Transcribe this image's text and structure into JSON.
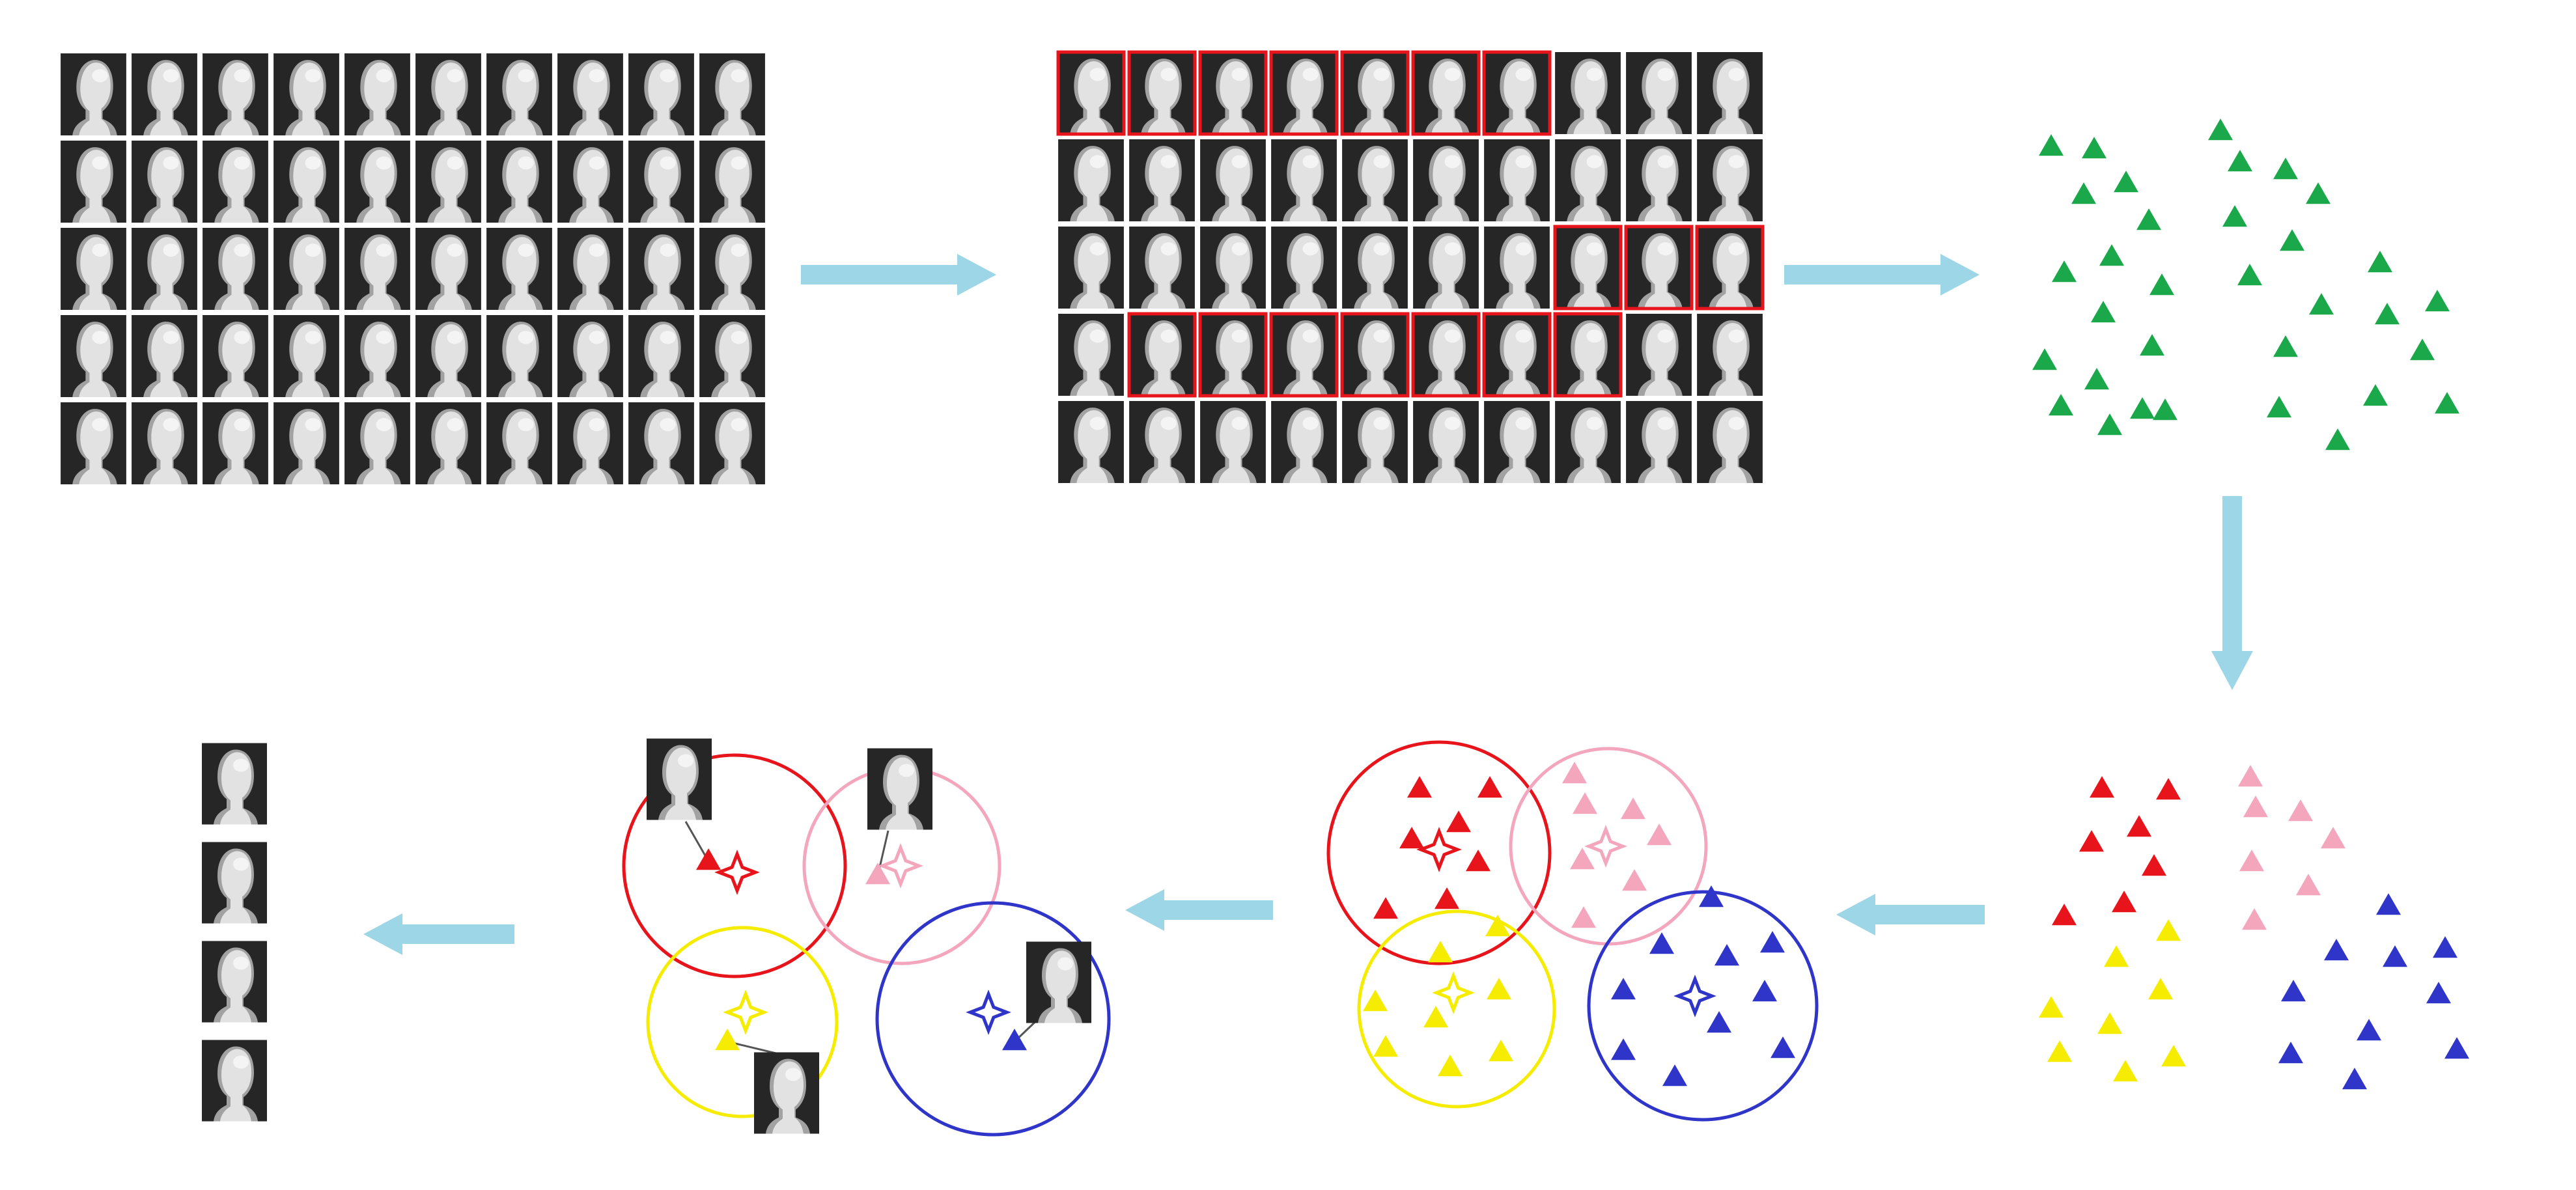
{
  "colors": {
    "background": "#ffffff",
    "arrow": "#9dd6e6",
    "cell_dark": "#262626",
    "head_light": "#e2e2e2",
    "head_shade": "#a2a2a2",
    "highlight": "#e8141c",
    "green": "#1aa84a",
    "red": "#e8141c",
    "pink": "#f4a6bd",
    "yellow": "#f5ec00",
    "blue": "#2f35c8",
    "leader_line": "#555555"
  },
  "grid": {
    "rows": 5,
    "cols": 10
  },
  "highlight_runs": [
    {
      "row": 0,
      "from": 0,
      "to": 6
    },
    {
      "row": 2,
      "from": 7,
      "to": 9
    },
    {
      "row": 3,
      "from": 1,
      "to": 7
    }
  ],
  "clusters": [
    "red",
    "pink",
    "yellow",
    "blue"
  ],
  "representatives": {
    "count": 4,
    "icon": "head-portrait-icon"
  },
  "icons": {
    "arrow": "arrow-icon",
    "data_point": "triangle-icon",
    "centroid": "four-point-star-icon",
    "face": "head-portrait-icon"
  }
}
